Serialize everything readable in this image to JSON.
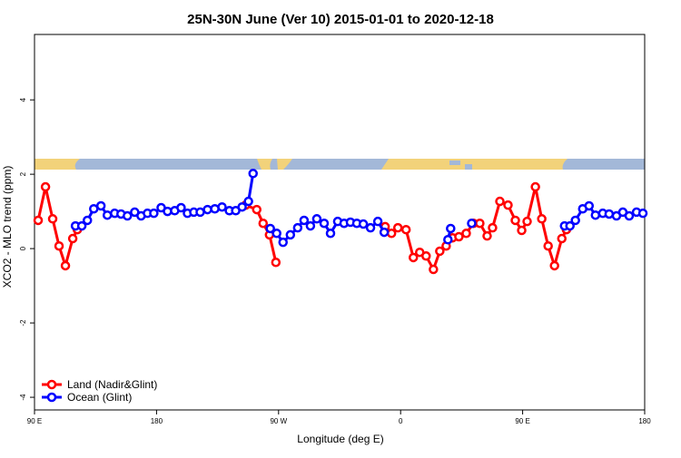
{
  "chart_data": {
    "type": "line",
    "title": "25N-30N June (Ver 10)   2015-01-01 to 2020-12-18",
    "x_label": "Longitude (deg E)",
    "y_label": "XCO2 - MLO trend (ppm)",
    "xlim": [
      90,
      540
    ],
    "xticks": [
      {
        "value": 90,
        "label": "90 E"
      },
      {
        "value": 180,
        "label": "180"
      },
      {
        "value": 270,
        "label": "90 W"
      },
      {
        "value": 360,
        "label": "0"
      },
      {
        "value": 450,
        "label": "90 E"
      },
      {
        "value": 540,
        "label": "180"
      }
    ],
    "ylim": [
      -4.34,
      5.76
    ],
    "yticks": [
      -4,
      -2,
      0,
      2,
      4
    ],
    "legend": "bottom-left",
    "series": [
      {
        "name": "Land (Nadir&Glint)",
        "color": "#ff0000",
        "x": [
          92.7,
          98.1,
          103.4,
          108.1,
          112.8,
          118.2,
          121.6,
          null,
          245.8,
          253.9,
          258.6,
          263.3,
          268.0,
          null,
          348.6,
          353.3,
          358.0,
          364.0,
          369.4,
          374.1,
          378.8,
          384.2,
          388.9,
          393.6,
          398.3,
          403.0,
          408.4,
          413.7,
          418.4,
          423.8,
          427.8,
          433.2,
          439.2,
          444.6,
          449.3,
          453.3,
          459.4,
          464.1,
          468.8,
          473.5,
          478.9,
          482.3
        ],
        "values": [
          0.76,
          1.66,
          0.8,
          0.07,
          -0.46,
          0.27,
          0.51,
          null,
          1.17,
          1.05,
          0.68,
          0.37,
          -0.37,
          null,
          0.59,
          0.41,
          0.56,
          0.51,
          -0.24,
          -0.1,
          -0.2,
          -0.56,
          -0.07,
          0.07,
          0.29,
          0.32,
          0.41,
          0.68,
          0.68,
          0.34,
          0.56,
          1.27,
          1.17,
          0.76,
          0.49,
          0.73,
          1.66,
          0.8,
          0.07,
          -0.46,
          0.27,
          0.51
        ]
      },
      {
        "name": "Ocean (Glint)",
        "color": "#0000ff",
        "x": [
          120.2,
          124.9,
          129.0,
          133.7,
          139.0,
          143.7,
          149.1,
          153.8,
          158.5,
          163.9,
          168.6,
          173.3,
          178.0,
          183.4,
          188.1,
          193.4,
          198.1,
          202.8,
          207.5,
          212.2,
          217.6,
          223.0,
          228.3,
          233.7,
          238.4,
          243.1,
          247.8,
          251.2,
          null,
          263.9,
          268.6,
          273.3,
          278.7,
          284.1,
          288.8,
          293.5,
          298.2,
          303.6,
          308.3,
          313.6,
          318.3,
          323.0,
          327.7,
          332.5,
          337.8,
          343.2,
          347.9,
          null,
          394.9,
          396.9,
          null,
          412.4,
          null,
          480.9,
          484.9,
          488.9,
          494.3,
          499.0,
          503.7,
          509.1,
          513.8,
          519.2,
          523.9,
          528.6,
          534.0,
          538.7
        ],
        "values": [
          0.61,
          0.61,
          0.76,
          1.07,
          1.15,
          0.9,
          0.95,
          0.93,
          0.88,
          0.98,
          0.88,
          0.95,
          0.95,
          1.1,
          1.0,
          1.02,
          1.1,
          0.95,
          0.98,
          0.98,
          1.05,
          1.07,
          1.12,
          1.02,
          1.02,
          1.12,
          1.27,
          2.02,
          null,
          0.54,
          0.41,
          0.17,
          0.37,
          0.56,
          0.76,
          0.61,
          0.8,
          0.68,
          0.41,
          0.73,
          0.68,
          0.71,
          0.68,
          0.66,
          0.56,
          0.73,
          0.44,
          null,
          0.24,
          0.54,
          null,
          0.68,
          null,
          0.61,
          0.61,
          0.76,
          1.07,
          1.15,
          0.9,
          0.95,
          0.93,
          0.88,
          0.98,
          0.88,
          0.98,
          0.95
        ]
      }
    ]
  }
}
